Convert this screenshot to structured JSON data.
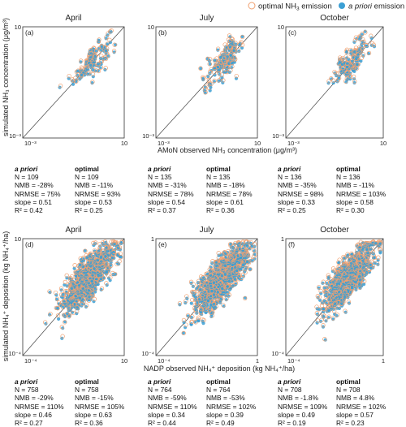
{
  "legend": {
    "optimal_label": "optimal NH",
    "optimal_sub": "3",
    "optimal_tail": " emission",
    "apriori_label": "a priori",
    "apriori_tail": " emission",
    "optimal_color": "#f0a070",
    "apriori_color": "#3b9fd4"
  },
  "row1": {
    "ylabel": "simulated NH₃ concentration (μg/m³)",
    "xlabel": "AMoN observed NH₃ concentration (μg/m³)"
  },
  "row2": {
    "ylabel": "simulated NH₄⁺ deposition (kg NH₄⁺/ha)",
    "xlabel": "NADP observed NH₄⁺ deposition (kg NH₄⁺/ha)"
  },
  "panels": [
    {
      "letter": "(a)",
      "month": "April",
      "ymax_label": "10",
      "ymin_label": "10⁻³",
      "xmin_label": "10⁻³",
      "xmax_label": "10"
    },
    {
      "letter": "(b)",
      "month": "July",
      "ymax_label": "10",
      "ymin_label": "10⁻³",
      "xmin_label": "10⁻³",
      "xmax_label": "10"
    },
    {
      "letter": "(c)",
      "month": "October",
      "ymax_label": "10",
      "ymin_label": "10⁻³",
      "xmin_label": "10⁻³",
      "xmax_label": "10"
    },
    {
      "letter": "(d)",
      "month": "April",
      "ymax_label": "10",
      "ymin_label": "10⁻⁴",
      "xmin_label": "10⁻⁴",
      "xmax_label": "10"
    },
    {
      "letter": "(e)",
      "month": "July",
      "ymax_label": "1",
      "ymin_label": "10⁻⁴",
      "xmin_label": "10⁻⁴",
      "xmax_label": "1"
    },
    {
      "letter": "(f)",
      "month": "October",
      "ymax_label": "1",
      "ymin_label": "10⁻⁴",
      "xmin_label": "10⁻⁴",
      "xmax_label": "1"
    }
  ],
  "stats": [
    {
      "apriori": [
        "a priori",
        "N = 109",
        "NMB = -28%",
        "NRMSE = 75%",
        "slope = 0.51",
        "R² = 0.42"
      ],
      "optimal": [
        "optimal",
        "N = 109",
        "NMB = -11%",
        "NRMSE = 93%",
        "slope = 0.53",
        "R² = 0.25"
      ]
    },
    {
      "apriori": [
        "a priori",
        "N = 135",
        "NMB = -31%",
        "NRMSE = 78%",
        "slope = 0.54",
        "R² = 0.37"
      ],
      "optimal": [
        "optimal",
        "N = 135",
        "NMB = -18%",
        "NRMSE = 78%",
        "slope = 0.61",
        "R² = 0.36"
      ]
    },
    {
      "apriori": [
        "a priori",
        "N = 136",
        "NMB = -35%",
        "NRMSE = 98%",
        "slope = 0.33",
        "R² = 0.25"
      ],
      "optimal": [
        "optimal",
        "N = 136",
        "NMB = -11%",
        "NRMSE = 103%",
        "slope = 0.58",
        "R² = 0.30"
      ]
    },
    {
      "apriori": [
        "a priori",
        "N = 758",
        "NMB = -29%",
        "NRMSE = 110%",
        "slope = 0.46",
        "R² = 0.27"
      ],
      "optimal": [
        "optimal",
        "N = 758",
        "NMB = -15%",
        "NRMSE = 105%",
        "slope = 0.63",
        "R² = 0.36"
      ]
    },
    {
      "apriori": [
        "a priori",
        "N = 764",
        "NMB = -59%",
        "NRMSE = 110%",
        "slope = 0.34",
        "R² = 0.44"
      ],
      "optimal": [
        "optimal",
        "N = 764",
        "NMB = -53%",
        "NRMSE = 102%",
        "slope = 0.39",
        "R² = 0.49"
      ]
    },
    {
      "apriori": [
        "a priori",
        "N = 708",
        "NMB = -1.8%",
        "NRMSE = 109%",
        "slope = 0.49",
        "R² = 0.19"
      ],
      "optimal": [
        "optimal",
        "N = 708",
        "NMB = 4.8%",
        "NRMSE = 102%",
        "slope = 0.57",
        "R² = 0.23"
      ]
    }
  ],
  "chart_data": [
    {
      "type": "scatter",
      "title": "April",
      "panel": "(a)",
      "xscale": "log",
      "yscale": "log",
      "xlim": [
        0.001,
        10
      ],
      "ylim": [
        0.001,
        10
      ],
      "one_to_one_line": true,
      "n": 109,
      "series": [
        {
          "name": "optimal NH3 emission"
        },
        {
          "name": "a priori emission"
        }
      ],
      "statistics": {
        "a priori": {
          "N": 109,
          "NMB": "-28%",
          "NRMSE": "75%",
          "slope": 0.51,
          "R2": 0.42
        },
        "optimal": {
          "N": 109,
          "NMB": "-11%",
          "NRMSE": "93%",
          "slope": 0.53,
          "R2": 0.25
        }
      }
    },
    {
      "type": "scatter",
      "title": "July",
      "panel": "(b)",
      "xscale": "log",
      "yscale": "log",
      "xlim": [
        0.001,
        10
      ],
      "ylim": [
        0.001,
        10
      ],
      "one_to_one_line": true,
      "n": 135,
      "series": [
        {
          "name": "optimal NH3 emission"
        },
        {
          "name": "a priori emission"
        }
      ],
      "statistics": {
        "a priori": {
          "N": 135,
          "NMB": "-31%",
          "NRMSE": "78%",
          "slope": 0.54,
          "R2": 0.37
        },
        "optimal": {
          "N": 135,
          "NMB": "-18%",
          "NRMSE": "78%",
          "slope": 0.61,
          "R2": 0.36
        }
      }
    },
    {
      "type": "scatter",
      "title": "October",
      "panel": "(c)",
      "xscale": "log",
      "yscale": "log",
      "xlim": [
        0.001,
        10
      ],
      "ylim": [
        0.001,
        10
      ],
      "one_to_one_line": true,
      "n": 136,
      "series": [
        {
          "name": "optimal NH3 emission"
        },
        {
          "name": "a priori emission"
        }
      ],
      "statistics": {
        "a priori": {
          "N": 136,
          "NMB": "-35%",
          "NRMSE": "98%",
          "slope": 0.33,
          "R2": 0.25
        },
        "optimal": {
          "N": 136,
          "NMB": "-11%",
          "NRMSE": "103%",
          "slope": 0.58,
          "R2": 0.3
        }
      }
    },
    {
      "type": "scatter",
      "title": "April",
      "panel": "(d)",
      "xscale": "log",
      "yscale": "log",
      "xlim": [
        0.0001,
        10
      ],
      "ylim": [
        0.0001,
        10
      ],
      "one_to_one_line": true,
      "n": 758,
      "series": [
        {
          "name": "optimal NH3 emission"
        },
        {
          "name": "a priori emission"
        }
      ],
      "statistics": {
        "a priori": {
          "N": 758,
          "NMB": "-29%",
          "NRMSE": "110%",
          "slope": 0.46,
          "R2": 0.27
        },
        "optimal": {
          "N": 758,
          "NMB": "-15%",
          "NRMSE": "105%",
          "slope": 0.63,
          "R2": 0.36
        }
      }
    },
    {
      "type": "scatter",
      "title": "July",
      "panel": "(e)",
      "xscale": "log",
      "yscale": "log",
      "xlim": [
        0.0001,
        1
      ],
      "ylim": [
        0.0001,
        1
      ],
      "one_to_one_line": true,
      "n": 764,
      "series": [
        {
          "name": "optimal NH3 emission"
        },
        {
          "name": "a priori emission"
        }
      ],
      "statistics": {
        "a priori": {
          "N": 764,
          "NMB": "-59%",
          "NRMSE": "110%",
          "slope": 0.34,
          "R2": 0.44
        },
        "optimal": {
          "N": 764,
          "NMB": "-53%",
          "NRMSE": "102%",
          "slope": 0.39,
          "R2": 0.49
        }
      }
    },
    {
      "type": "scatter",
      "title": "October",
      "panel": "(f)",
      "xscale": "log",
      "yscale": "log",
      "xlim": [
        0.0001,
        1
      ],
      "ylim": [
        0.0001,
        1
      ],
      "one_to_one_line": true,
      "n": 708,
      "series": [
        {
          "name": "optimal NH3 emission"
        },
        {
          "name": "a priori emission"
        }
      ],
      "statistics": {
        "a priori": {
          "N": 708,
          "NMB": "-1.8%",
          "NRMSE": "109%",
          "slope": 0.49,
          "R2": 0.19
        },
        "optimal": {
          "N": 708,
          "NMB": "4.8%",
          "NRMSE": "102%",
          "slope": 0.57,
          "R2": 0.23
        }
      }
    }
  ]
}
